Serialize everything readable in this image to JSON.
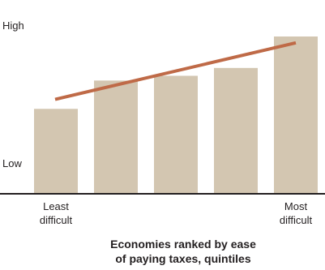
{
  "chart_data": {
    "type": "bar",
    "categories": [
      "Least difficult",
      "",
      "",
      "",
      "Most difficult"
    ],
    "category_labels": [
      [
        "Least",
        "difficult"
      ],
      [],
      [],
      [],
      [
        "Most",
        "difficult"
      ]
    ],
    "values": [
      54,
      72,
      75,
      80,
      100
    ],
    "trend_line": {
      "start": 60,
      "end": 96,
      "color": "#bf6a47"
    },
    "ylim": [
      0,
      100
    ],
    "y_tick_labels": {
      "high": "High",
      "low": "Low"
    },
    "xlabel_lines": [
      "Economies ranked by ease",
      "of paying taxes, quintiles"
    ],
    "ylabel": "",
    "title": "",
    "grid": false,
    "legend": "none",
    "colors": {
      "bar": "#d3c6b1",
      "axis": "#231f20",
      "text": "#231f20"
    }
  }
}
